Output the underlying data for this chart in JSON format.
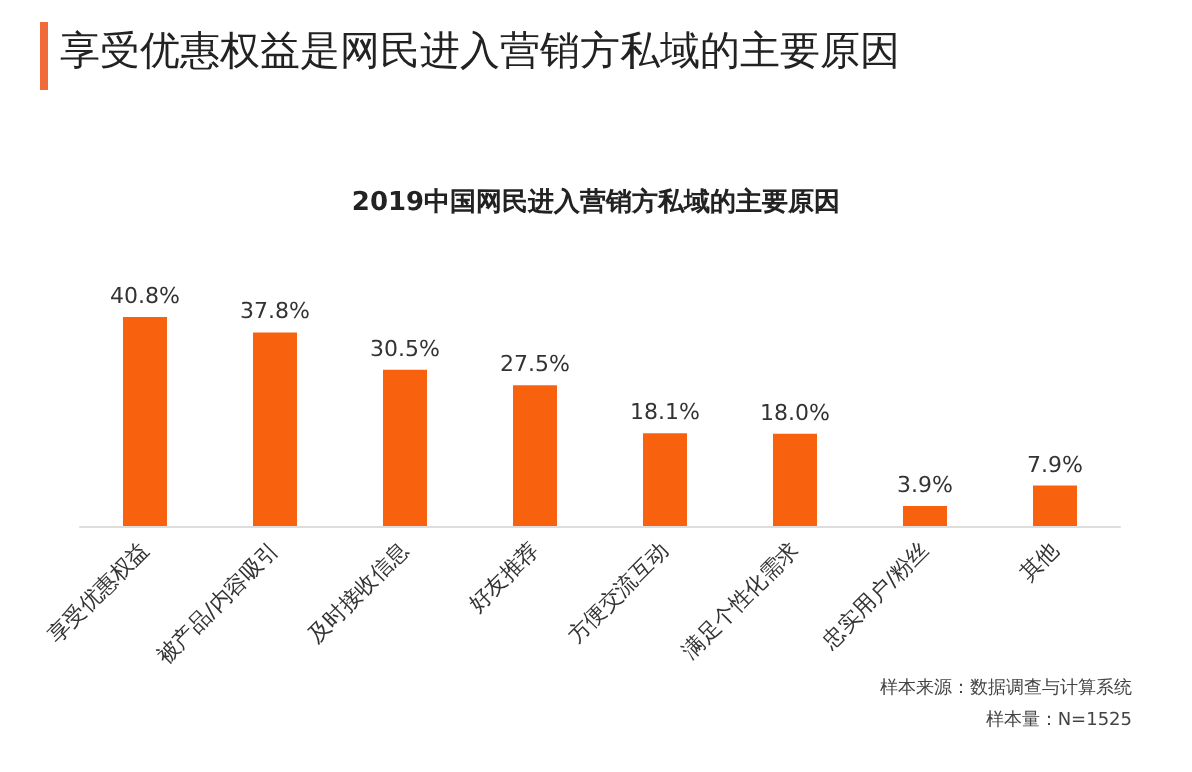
{
  "chart_data": {
    "type": "bar",
    "title": "享受优惠权益是网民进入营销方私域的主要原因",
    "subtitle": "2019中国网民进入营销方私域的主要原因",
    "categories": [
      "享受优惠权益",
      "被产品/内容吸引",
      "及时接收信息",
      "好友推荐",
      "方便交流互动",
      "满足个性化需求",
      "忠实用户/粉丝",
      "其他"
    ],
    "values": [
      40.8,
      37.8,
      30.5,
      27.5,
      18.1,
      18.0,
      3.9,
      7.9
    ],
    "value_labels": [
      "40.8%",
      "37.8%",
      "30.5%",
      "27.5%",
      "18.1%",
      "18.0%",
      "3.9%",
      "7.9%"
    ],
    "color": "#f8620f",
    "tick_labels": "x",
    "annotations": [
      "样本来源：数据调查与计算系统",
      "样本量：N=1525"
    ]
  }
}
